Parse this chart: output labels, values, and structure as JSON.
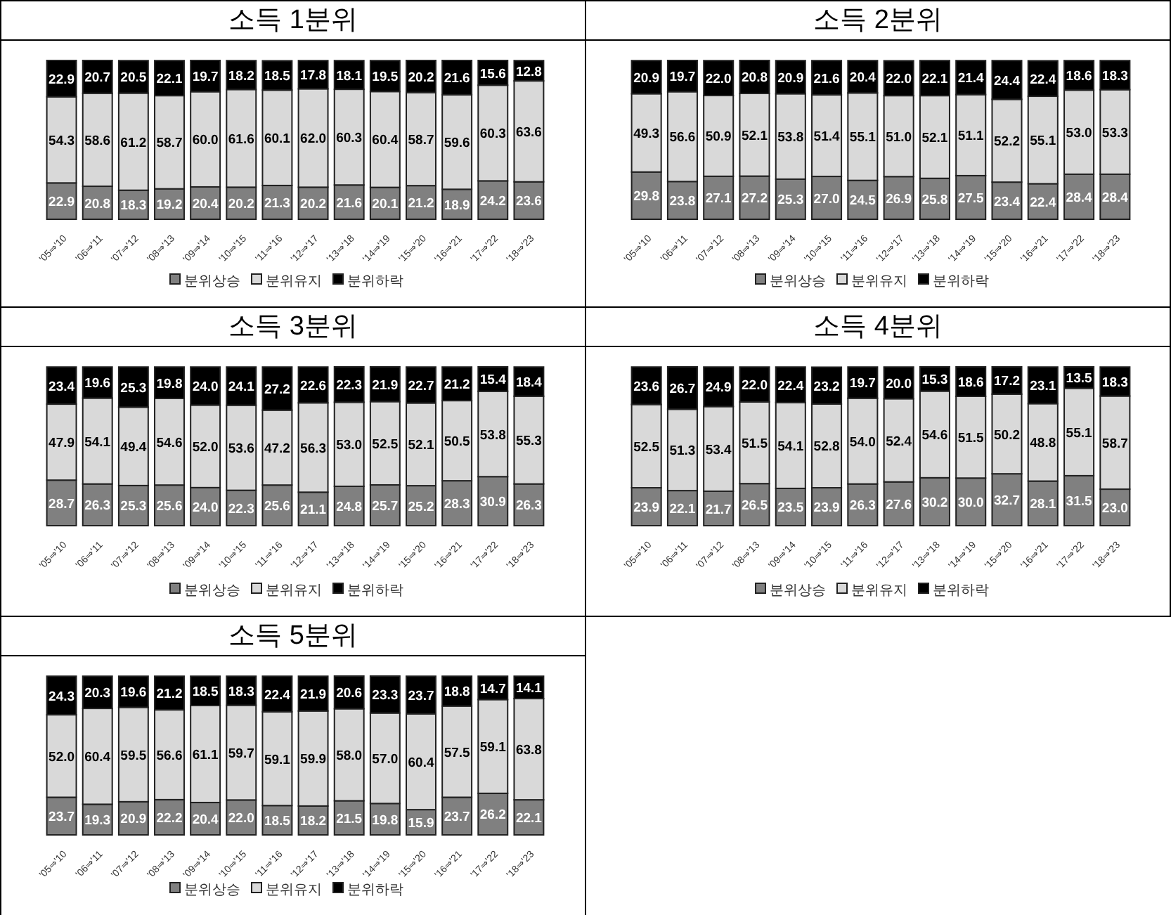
{
  "chart_data": [
    {
      "type": "bar",
      "title": "소득 1분위",
      "stacked": true,
      "legend": "bottom",
      "categories": [
        "'05⇒'10",
        "'06⇒'11",
        "'07⇒'12",
        "'08⇒'13",
        "'09⇒'14",
        "'10⇒'15",
        "'11⇒'16",
        "'12⇒'17",
        "'13⇒'18",
        "'14⇒'19",
        "'15⇒'20",
        "'16⇒'21",
        "'17⇒'22",
        "'18⇒'23"
      ],
      "series": [
        {
          "name": "분위상승",
          "color": "#808080",
          "values": [
            22.9,
            20.8,
            18.3,
            19.2,
            20.4,
            20.2,
            21.3,
            20.2,
            21.6,
            20.1,
            21.2,
            18.9,
            24.2,
            23.6
          ],
          "value_labels": [
            "22.9",
            "20.8",
            "18.3",
            "19.2",
            "20.4",
            "20.2",
            "21.3",
            "20.2",
            "21.6",
            "20.1",
            "21.2",
            "18.9",
            "24.2",
            "23.6"
          ]
        },
        {
          "name": "분위유지",
          "color": "#d9d9d9",
          "values": [
            54.3,
            58.6,
            61.2,
            58.7,
            60.0,
            61.6,
            60.1,
            62.0,
            60.3,
            60.4,
            58.7,
            59.6,
            60.3,
            63.6
          ],
          "value_labels": [
            "54.3",
            "58.6",
            "61.2",
            "58.7",
            "60.0",
            "61.6",
            "60.1",
            "62.0",
            "60.3",
            "60.4",
            "58.7",
            "59.6",
            "60.3",
            "63.6"
          ]
        },
        {
          "name": "분위하락",
          "color": "#000000",
          "values": [
            22.9,
            20.7,
            20.5,
            22.1,
            19.7,
            18.2,
            18.5,
            17.8,
            18.1,
            19.5,
            20.2,
            21.6,
            15.6,
            12.8
          ],
          "value_labels": [
            "22.9",
            "20.7",
            "20.5",
            "22.1",
            "19.7",
            "18.2",
            "18.5",
            "17.8",
            "18.1",
            "19.5",
            "20.2",
            "21.6",
            "15.6",
            "12.8"
          ]
        }
      ]
    },
    {
      "type": "bar",
      "title": "소득 2분위",
      "stacked": true,
      "legend": "bottom",
      "categories": [
        "'05⇒'10",
        "'06⇒'11",
        "'07⇒'12",
        "'08⇒'13",
        "'09⇒'14",
        "'10⇒'15",
        "'11⇒'16",
        "'12⇒'17",
        "'13⇒'18",
        "'14⇒'19",
        "'15⇒'20",
        "'16⇒'21",
        "'17⇒'22",
        "'18⇒'23"
      ],
      "series": [
        {
          "name": "분위상승",
          "color": "#808080",
          "values": [
            29.8,
            23.8,
            27.1,
            27.2,
            25.3,
            27.0,
            24.5,
            26.9,
            25.8,
            27.5,
            23.4,
            22.4,
            28.4,
            28.4
          ],
          "value_labels": [
            "29.8",
            "23.8",
            "27.1",
            "27.2",
            "25.3",
            "27.0",
            "24.5",
            "26.9",
            "25.8",
            "27.5",
            "23.4",
            "22.4",
            "28.4",
            "28.4"
          ]
        },
        {
          "name": "분위유지",
          "color": "#d9d9d9",
          "values": [
            49.3,
            56.6,
            50.9,
            52.1,
            53.8,
            51.4,
            55.1,
            51.0,
            52.1,
            51.1,
            52.2,
            55.1,
            53.0,
            53.3
          ],
          "value_labels": [
            "49.3",
            "56.6",
            "50.9",
            "52.1",
            "53.8",
            "51.4",
            "55.1",
            "51.0",
            "52.1",
            "51.1",
            "52.2",
            "55.1",
            "53.0",
            "53.3"
          ]
        },
        {
          "name": "분위하락",
          "color": "#000000",
          "values": [
            20.9,
            19.7,
            22.0,
            20.8,
            20.9,
            21.6,
            20.4,
            22.0,
            22.1,
            21.4,
            24.4,
            22.4,
            18.6,
            18.3
          ],
          "value_labels": [
            "20.9",
            "19.7",
            "22.0",
            "20.8",
            "20.9",
            "21.6",
            "20.4",
            "22.0",
            "22.1",
            "21.4",
            "24.4",
            "22.4",
            "18.6",
            "18.3"
          ]
        }
      ]
    },
    {
      "type": "bar",
      "title": "소득 3분위",
      "stacked": true,
      "legend": "bottom",
      "categories": [
        "'05⇒'10",
        "'06⇒'11",
        "'07⇒'12",
        "'08⇒'13",
        "'09⇒'14",
        "'10⇒'15",
        "'11⇒'16",
        "'12⇒'17",
        "'13⇒'18",
        "'14⇒'19",
        "'15⇒'20",
        "'16⇒'21",
        "'17⇒'22",
        "'18⇒'23"
      ],
      "series": [
        {
          "name": "분위상승",
          "color": "#808080",
          "values": [
            28.7,
            26.3,
            25.3,
            25.6,
            24.0,
            22.3,
            25.6,
            21.1,
            24.8,
            25.7,
            25.2,
            28.3,
            30.9,
            26.3
          ],
          "value_labels": [
            "28.7",
            "26.3",
            "25.3",
            "25.6",
            "24.0",
            "22.3",
            "25.6",
            "21.1",
            "24.8",
            "25.7",
            "25.2",
            "28.3",
            "30.9",
            "26.3"
          ]
        },
        {
          "name": "분위유지",
          "color": "#d9d9d9",
          "values": [
            47.9,
            54.1,
            49.4,
            54.6,
            52.0,
            53.6,
            47.2,
            56.3,
            53.0,
            52.5,
            52.1,
            50.5,
            53.8,
            55.3
          ],
          "value_labels": [
            "47.9",
            "54.1",
            "49.4",
            "54.6",
            "52.0",
            "53.6",
            "47.2",
            "56.3",
            "53.0",
            "52.5",
            "52.1",
            "50.5",
            "53.8",
            "55.3"
          ]
        },
        {
          "name": "분위하락",
          "color": "#000000",
          "values": [
            23.4,
            19.6,
            25.3,
            19.8,
            24.0,
            24.1,
            27.2,
            22.6,
            22.3,
            21.9,
            22.7,
            21.2,
            15.4,
            18.4
          ],
          "value_labels": [
            "23.4",
            "19.6",
            "25.3",
            "19.8",
            "24.0",
            "24.1",
            "27.2",
            "22.6",
            "22.3",
            "21.9",
            "22.7",
            "21.2",
            "15.4",
            "18.4"
          ]
        }
      ]
    },
    {
      "type": "bar",
      "title": "소득 4분위",
      "stacked": true,
      "legend": "bottom",
      "categories": [
        "'05⇒'10",
        "'06⇒'11",
        "'07⇒'12",
        "'08⇒'13",
        "'09⇒'14",
        "'10⇒'15",
        "'11⇒'16",
        "'12⇒'17",
        "'13⇒'18",
        "'14⇒'19",
        "'15⇒'20",
        "'16⇒'21",
        "'17⇒'22",
        "'18⇒'23"
      ],
      "series": [
        {
          "name": "분위상승",
          "color": "#808080",
          "values": [
            23.9,
            22.1,
            21.7,
            26.5,
            23.5,
            23.9,
            26.3,
            27.6,
            30.2,
            30.0,
            32.7,
            28.1,
            31.5,
            23.0
          ],
          "value_labels": [
            "23.9",
            "22.1",
            "21.7",
            "26.5",
            "23.5",
            "23.9",
            "26.3",
            "27.6",
            "30.2",
            "30.0",
            "32.7",
            "28.1",
            "31.5",
            "23.0"
          ]
        },
        {
          "name": "분위유지",
          "color": "#d9d9d9",
          "values": [
            52.5,
            51.3,
            53.4,
            51.5,
            54.1,
            52.8,
            54.0,
            52.4,
            54.6,
            51.5,
            50.2,
            48.8,
            55.1,
            58.7
          ],
          "value_labels": [
            "52.5",
            "51.3",
            "53.4",
            "51.5",
            "54.1",
            "52.8",
            "54.0",
            "52.4",
            "54.6",
            "51.5",
            "50.2",
            "48.8",
            "55.1",
            "58.7"
          ]
        },
        {
          "name": "분위하락",
          "color": "#000000",
          "values": [
            23.6,
            26.7,
            24.9,
            22.0,
            22.4,
            23.2,
            19.7,
            20.0,
            15.3,
            18.6,
            17.2,
            23.1,
            13.5,
            18.3
          ],
          "value_labels": [
            "23.6",
            "26.7",
            "24.9",
            "22.0",
            "22.4",
            "23.2",
            "19.7",
            "20.0",
            "15.3",
            "18.6",
            "17.2",
            "23.1",
            "13.5",
            "18.3"
          ]
        }
      ]
    },
    {
      "type": "bar",
      "title": "소득 5분위",
      "stacked": true,
      "legend": "bottom",
      "categories": [
        "'05⇒'10",
        "'06⇒'11",
        "'07⇒'12",
        "'08⇒'13",
        "'09⇒'14",
        "'10⇒'15",
        "'11⇒'16",
        "'12⇒'17",
        "'13⇒'18",
        "'14⇒'19",
        "'15⇒'20",
        "'16⇒'21",
        "'17⇒'22",
        "'18⇒'23"
      ],
      "series": [
        {
          "name": "분위상승",
          "color": "#808080",
          "values": [
            23.7,
            19.3,
            20.9,
            22.2,
            20.4,
            22.0,
            18.5,
            18.2,
            21.5,
            19.8,
            15.9,
            23.7,
            26.2,
            22.1
          ],
          "value_labels": [
            "23.7",
            "19.3",
            "20.9",
            "22.2",
            "20.4",
            "22.0",
            "18.5",
            "18.2",
            "21.5",
            "19.8",
            "15.9",
            "23.7",
            "26.2",
            "22.1"
          ]
        },
        {
          "name": "분위유지",
          "color": "#d9d9d9",
          "values": [
            52.0,
            60.4,
            59.5,
            56.6,
            61.1,
            59.7,
            59.1,
            59.9,
            58.0,
            57.0,
            60.4,
            57.5,
            59.1,
            63.8
          ],
          "value_labels": [
            "52.0",
            "60.4",
            "59.5",
            "56.6",
            "61.1",
            "59.7",
            "59.1",
            "59.9",
            "58.0",
            "57.0",
            "60.4",
            "57.5",
            "59.1",
            "63.8"
          ]
        },
        {
          "name": "분위하락",
          "color": "#000000",
          "values": [
            24.3,
            20.3,
            19.6,
            21.2,
            18.5,
            18.3,
            22.4,
            21.9,
            20.6,
            23.3,
            23.7,
            18.8,
            14.7,
            14.1
          ],
          "value_labels": [
            "24.3",
            "20.3",
            "19.6",
            "21.2",
            "18.5",
            "18.3",
            "22.4",
            "21.9",
            "20.6",
            "23.3",
            "23.7",
            "18.8",
            "14.7",
            "14.1"
          ]
        }
      ]
    }
  ]
}
